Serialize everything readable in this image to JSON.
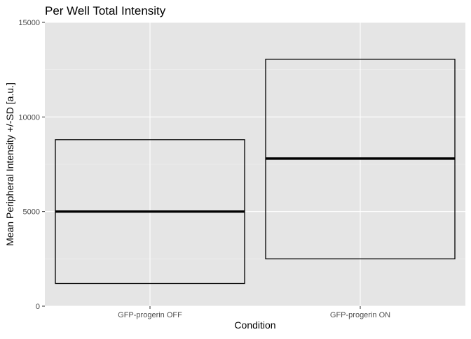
{
  "chart_data": {
    "type": "crossbar",
    "title": "Per Well Total Intensity",
    "xlabel": "Condition",
    "ylabel": "Mean Peripheral Intensity +/-SD [a.u.]",
    "categories": [
      "GFP-progerin OFF",
      "GFP-progerin ON"
    ],
    "mean": [
      5000,
      7800
    ],
    "lower": [
      1200,
      2500
    ],
    "upper": [
      8800,
      13050
    ],
    "ylim": [
      0,
      15000
    ],
    "yticks": [
      0,
      5000,
      10000,
      15000
    ],
    "ytick_labels": [
      "0",
      "5000",
      "10000",
      "15000"
    ],
    "grid": true,
    "legend": "none",
    "colors": {
      "panel_bg": "#e5e5e5",
      "grid_major": "#ffffff",
      "grid_minor": "#f2f2f2",
      "box_stroke": "#000000",
      "tick_label": "#4d4d4d",
      "axis_title": "#000000"
    }
  }
}
